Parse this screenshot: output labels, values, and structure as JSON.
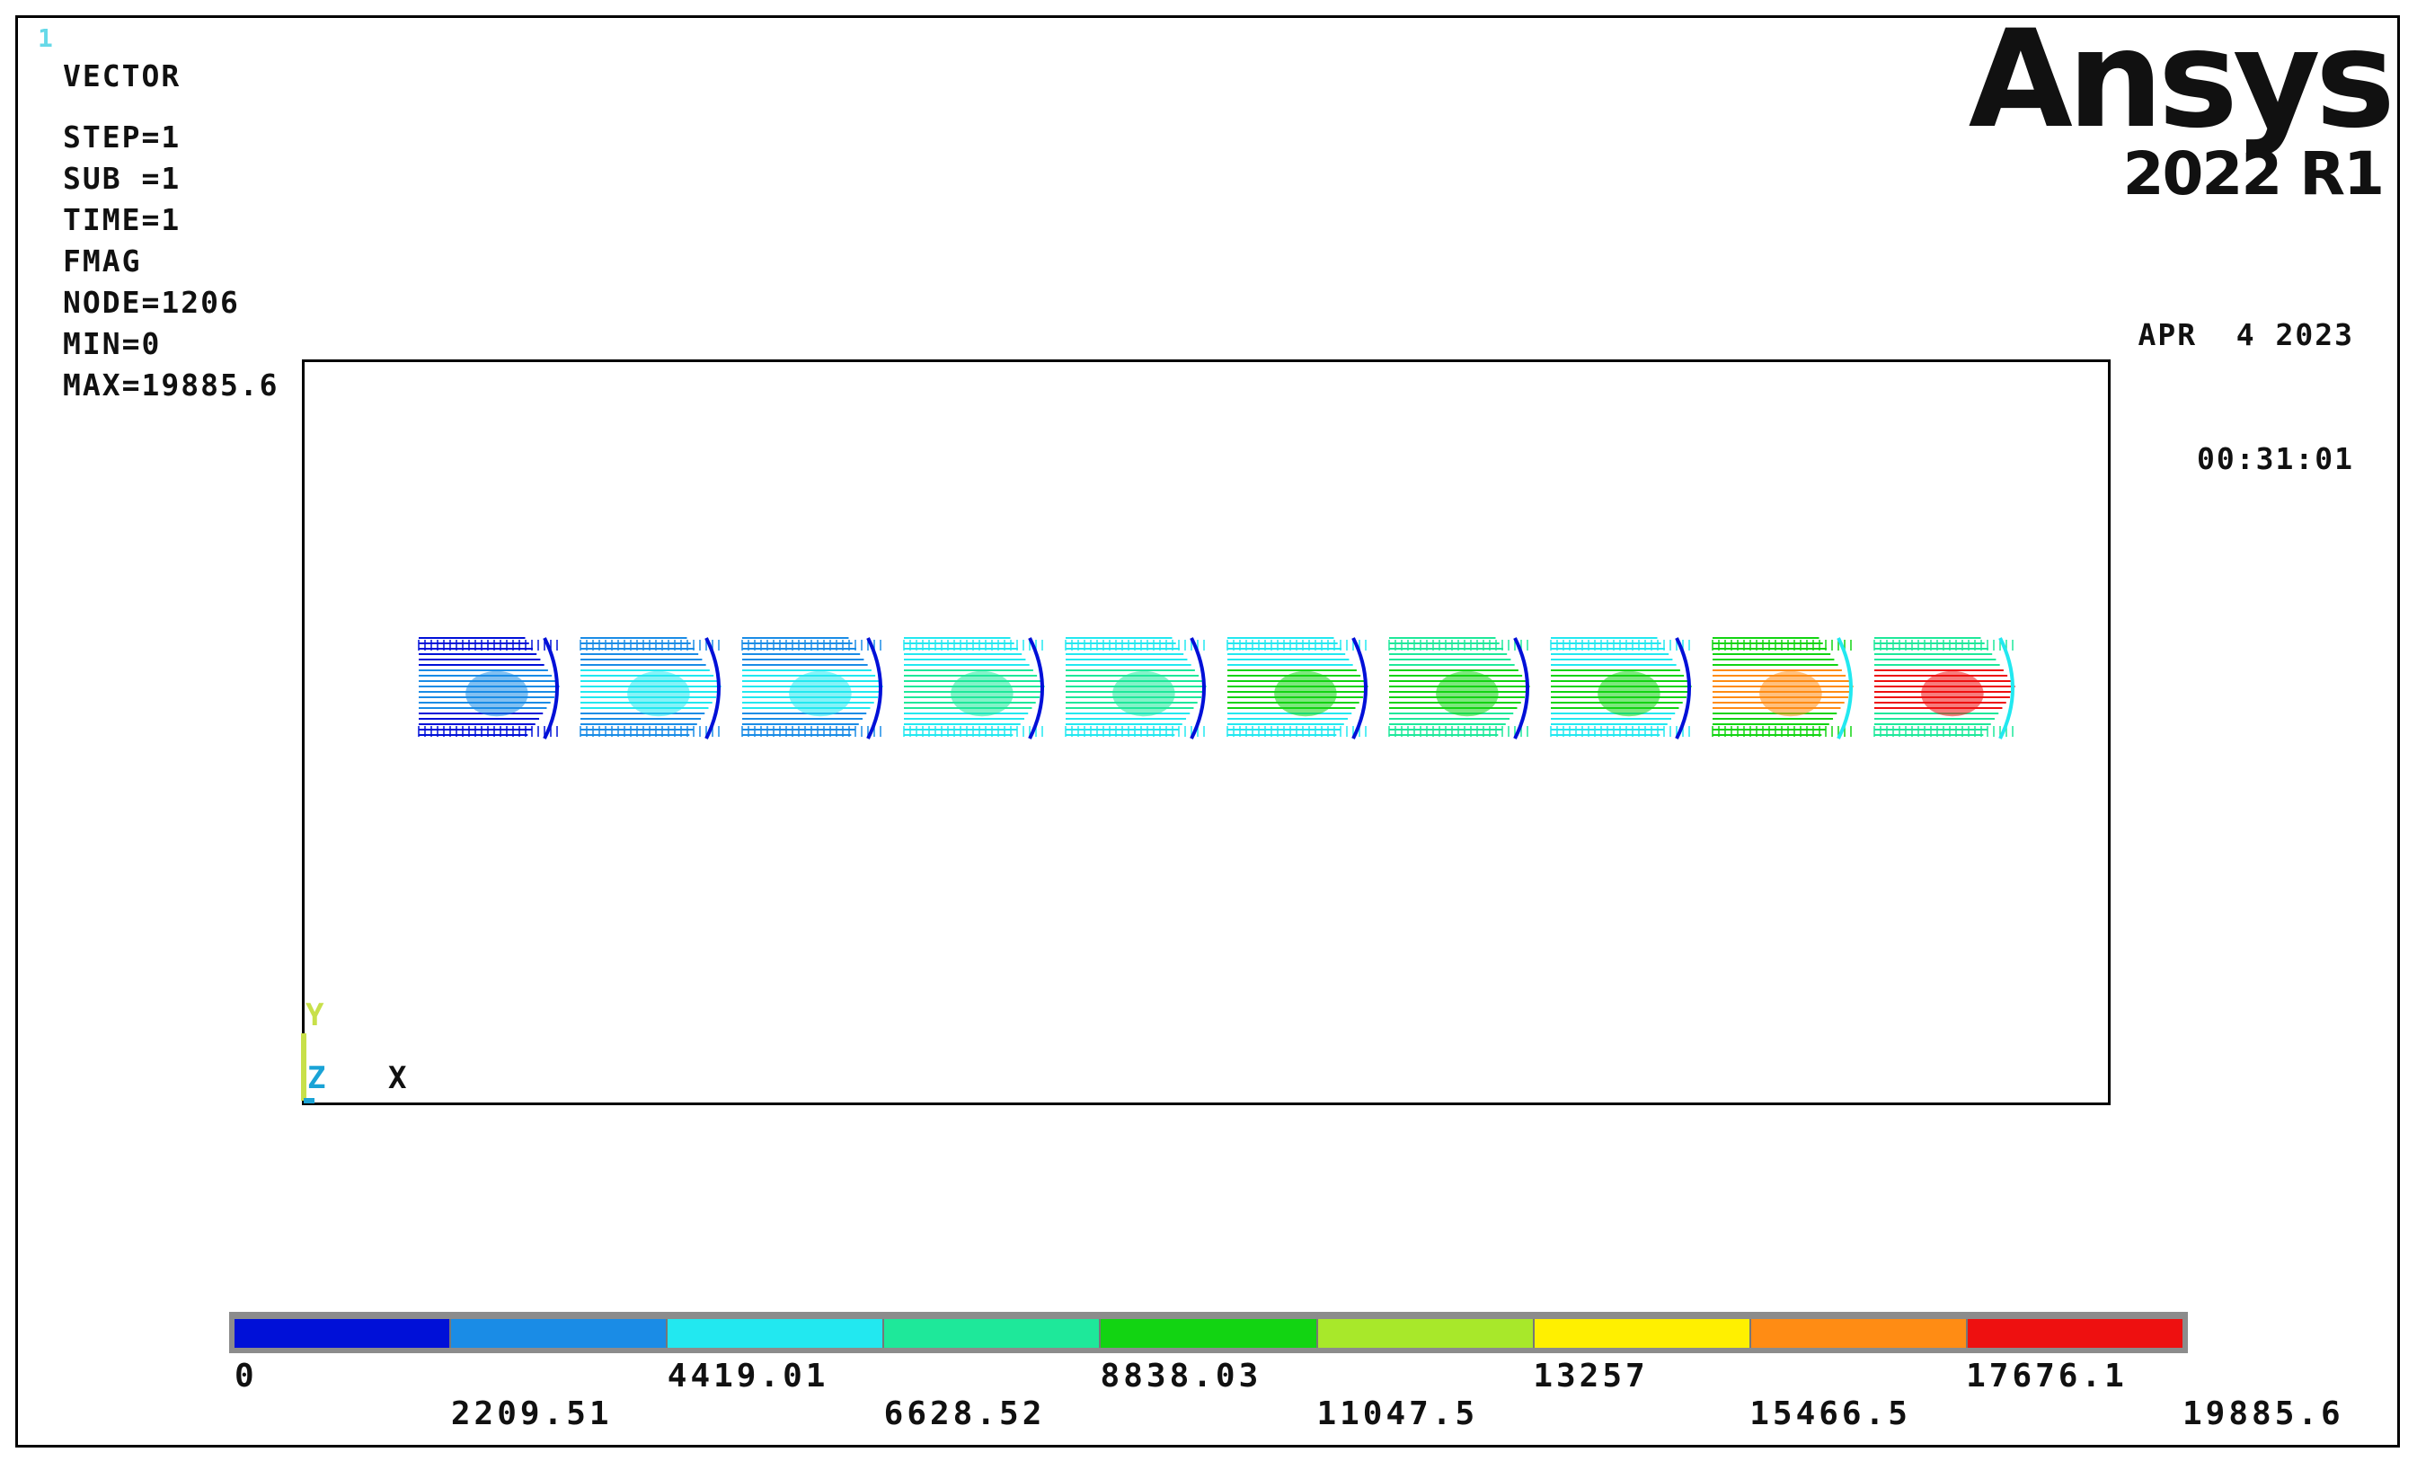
{
  "window_number": "1",
  "info": {
    "plot_type": "VECTOR",
    "step": "STEP=1",
    "sub": "SUB =1",
    "time": "TIME=1",
    "quantity": "FMAG",
    "node": "NODE=1206",
    "min": "MIN=0",
    "max": "MAX=19885.6"
  },
  "brand": {
    "name": "Ansys",
    "version": "2022 R1"
  },
  "timestamp": {
    "date": "APR  4 2023",
    "time": "00:31:01"
  },
  "triad": {
    "y_label": "Y",
    "z_label": "Z",
    "x_label": "X",
    "y_color": "#c8e04a",
    "z_color": "#1aa3d6"
  },
  "legend": {
    "colors": [
      "#0010d8",
      "#1a8ce6",
      "#22e8f0",
      "#1ee89a",
      "#12d412",
      "#a8e82a",
      "#fff000",
      "#ff8c14",
      "#ee1010"
    ],
    "labels": [
      "0",
      "2209.51",
      "4419.01",
      "6628.52",
      "8838.03",
      "11047.5",
      "13257",
      "15466.5",
      "17676.1",
      "19885.6"
    ]
  },
  "fringe_groups": [
    {
      "level": 0.1,
      "core_level": 0.12,
      "edge_level": 0.05
    },
    {
      "level": 0.18,
      "core_level": 0.24,
      "edge_level": 0.02
    },
    {
      "level": 0.22,
      "core_level": 0.3,
      "edge_level": 0.02
    },
    {
      "level": 0.26,
      "core_level": 0.38,
      "edge_level": 0.02
    },
    {
      "level": 0.28,
      "core_level": 0.42,
      "edge_level": 0.02
    },
    {
      "level": 0.32,
      "core_level": 0.48,
      "edge_level": 0.02
    },
    {
      "level": 0.34,
      "core_level": 0.45,
      "edge_level": 0.02
    },
    {
      "level": 0.3,
      "core_level": 0.55,
      "edge_level": 0.02
    },
    {
      "level": 0.45,
      "core_level": 0.85,
      "edge_level": 0.3
    },
    {
      "level": 0.4,
      "core_level": 0.9,
      "edge_level": 0.25
    }
  ]
}
